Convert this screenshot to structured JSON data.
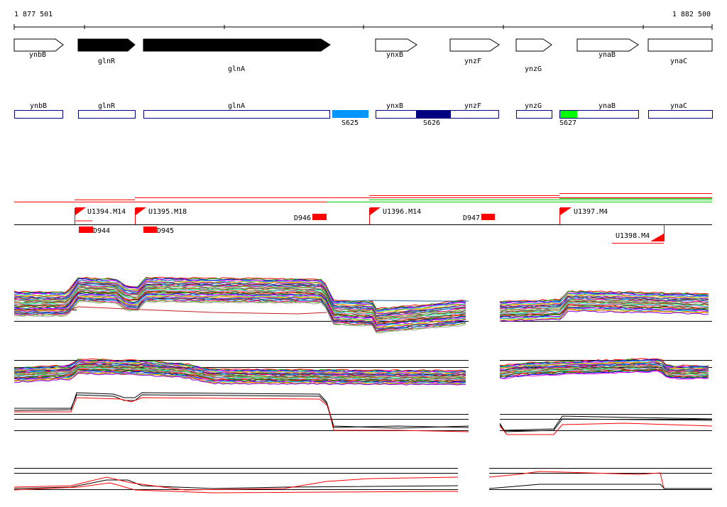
{
  "coordinates": {
    "start": "1 877 501",
    "end": "1 882 500"
  },
  "genes": [
    {
      "name": "ynbB",
      "strand": "+",
      "filled": false
    },
    {
      "name": "glnR",
      "strand": "+",
      "filled": true
    },
    {
      "name": "glnA",
      "strand": "+",
      "filled": true
    },
    {
      "name": "ynxB",
      "strand": "+",
      "filled": false
    },
    {
      "name": "ynzF",
      "strand": "+",
      "filled": false
    },
    {
      "name": "ynzG",
      "strand": "+",
      "filled": false
    },
    {
      "name": "ynaB",
      "strand": "+",
      "filled": false
    },
    {
      "name": "ynaC",
      "strand": "+",
      "filled": false
    }
  ],
  "segments": [
    {
      "name": "S625",
      "color": "#0096ff"
    },
    {
      "name": "S626",
      "color": "#000080"
    },
    {
      "name": "S627",
      "color": "#00ff00"
    }
  ],
  "upshifts": [
    "U1394.M14",
    "U1395.M18",
    "U1396.M14",
    "U1397.M4",
    "U1398.M4"
  ],
  "downshifts": [
    "D944",
    "D945",
    "D946",
    "D947"
  ],
  "colors": {
    "up": "#ff0000",
    "down": "#ff0000",
    "gene_outline": "#000080"
  }
}
